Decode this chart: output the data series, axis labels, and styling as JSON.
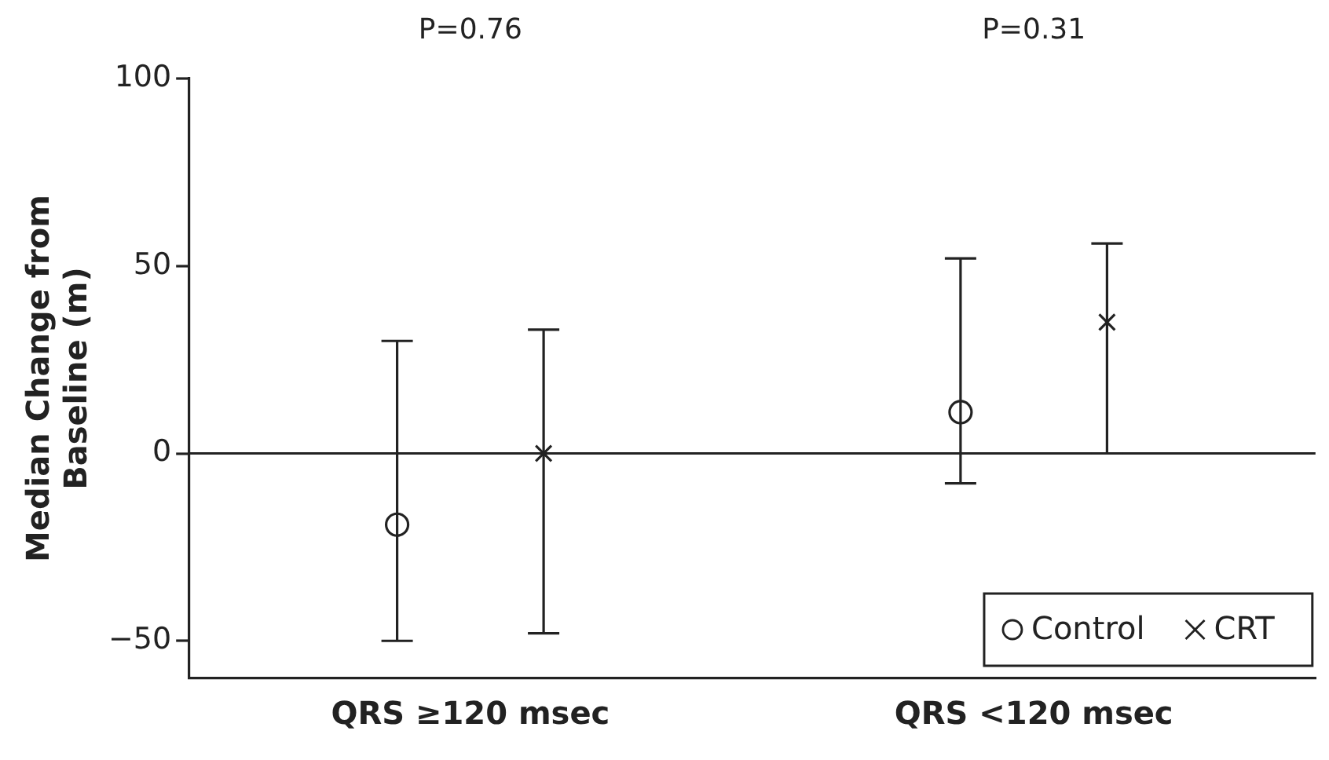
{
  "chart_data": {
    "type": "scatter",
    "ylabel": "Median Change from Baseline (m)",
    "categories": [
      "QRS ≥120 msec",
      "QRS <120 msec"
    ],
    "series": [
      {
        "name": "Control",
        "color": "#222222",
        "marker": "circle",
        "values": [
          -19,
          11
        ],
        "errors": [
          [
            -50,
            30
          ],
          [
            -8,
            52
          ]
        ]
      },
      {
        "name": "CRT",
        "color": "#222222",
        "marker": "cross",
        "values": [
          0,
          35
        ],
        "errors": [
          [
            -48,
            33
          ],
          [
            0,
            56
          ]
        ]
      }
    ],
    "ylim": [
      -60,
      100
    ],
    "yticks": [
      -50,
      0,
      50,
      100
    ],
    "grid": false,
    "legend": "bottom right",
    "ref_lines": [
      {
        "axis": "y",
        "value": 0
      }
    ],
    "annotations": [
      "P=0.76",
      "P=0.31"
    ]
  }
}
